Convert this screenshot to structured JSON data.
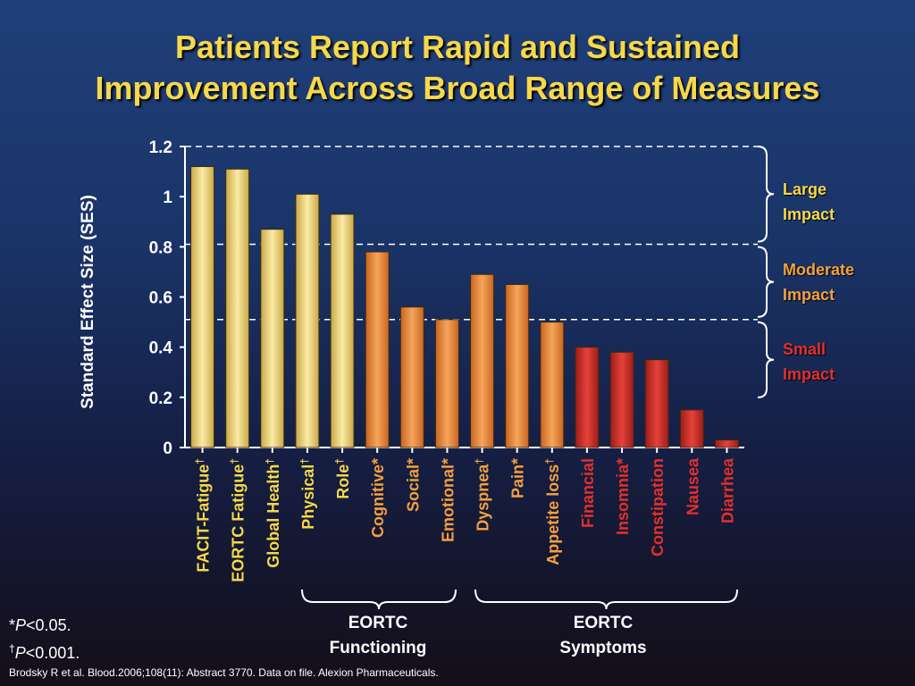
{
  "title": {
    "line1": "Patients Report Rapid and Sustained",
    "line2": "Improvement Across Broad Range of Measures"
  },
  "chart_data": {
    "type": "bar",
    "ylabel": "Standard Effect Size (SES)",
    "ylim": [
      0,
      1.2
    ],
    "yticks": [
      "0",
      "0.2",
      "0.4",
      "0.6",
      "0.8",
      "1",
      "1.2"
    ],
    "grid_lines": [
      0.81,
      0.51,
      1.2
    ],
    "categories": [
      {
        "name": "FACIT-Fatigue",
        "mark": "†",
        "value": 1.12,
        "level": "large"
      },
      {
        "name": "EORTC Fatigue",
        "mark": "†",
        "value": 1.11,
        "level": "large"
      },
      {
        "name": "Global Health",
        "mark": "†",
        "value": 0.87,
        "level": "large"
      },
      {
        "name": "Physical",
        "mark": "†",
        "value": 1.01,
        "level": "large"
      },
      {
        "name": "Role",
        "mark": "†",
        "value": 0.93,
        "level": "large"
      },
      {
        "name": "Cognitive",
        "mark": "*",
        "value": 0.78,
        "level": "moderate"
      },
      {
        "name": "Social",
        "mark": "*",
        "value": 0.56,
        "level": "moderate"
      },
      {
        "name": "Emotional",
        "mark": "*",
        "value": 0.51,
        "level": "moderate"
      },
      {
        "name": "Dyspnea",
        "mark": "†",
        "value": 0.69,
        "level": "moderate"
      },
      {
        "name": "Pain",
        "mark": "*",
        "value": 0.65,
        "level": "moderate"
      },
      {
        "name": "Appetite loss",
        "mark": "†",
        "value": 0.5,
        "level": "moderate"
      },
      {
        "name": "Financial",
        "mark": "",
        "value": 0.4,
        "level": "small"
      },
      {
        "name": "Insomnia",
        "mark": "*",
        "value": 0.38,
        "level": "small"
      },
      {
        "name": "Constipation",
        "mark": "",
        "value": 0.35,
        "level": "small"
      },
      {
        "name": "Nausea",
        "mark": "",
        "value": 0.15,
        "level": "small"
      },
      {
        "name": "Diarrhea",
        "mark": "",
        "value": 0.03,
        "level": "small"
      }
    ],
    "impact_labels": [
      {
        "line1": "Large",
        "line2": "Impact",
        "level": "large"
      },
      {
        "line1": "Moderate",
        "line2": "Impact",
        "level": "moderate"
      },
      {
        "line1": "Small",
        "line2": "Impact",
        "level": "small"
      }
    ],
    "groups": [
      {
        "line1": "EORTC",
        "line2": "Functioning"
      },
      {
        "line1": "EORTC",
        "line2": "Symptoms"
      }
    ]
  },
  "colors": {
    "large": "#f3dc82",
    "moderate": "#f08a3a",
    "small": "#d6302c",
    "large_text": "#f6d84a",
    "moderate_text": "#f4a040",
    "small_text": "#e3302c",
    "title": "#f6d84a"
  },
  "footnotes": {
    "star_mark": "*",
    "star_p": "P",
    "star_text": "<0.05.",
    "dagger_mark": "†",
    "dagger_p": "P",
    "dagger_text": "<0.001."
  },
  "citation": "Brodsky R et al. Blood.2006;108(11): Abstract 3770. Data on file. Alexion Pharmaceuticals."
}
